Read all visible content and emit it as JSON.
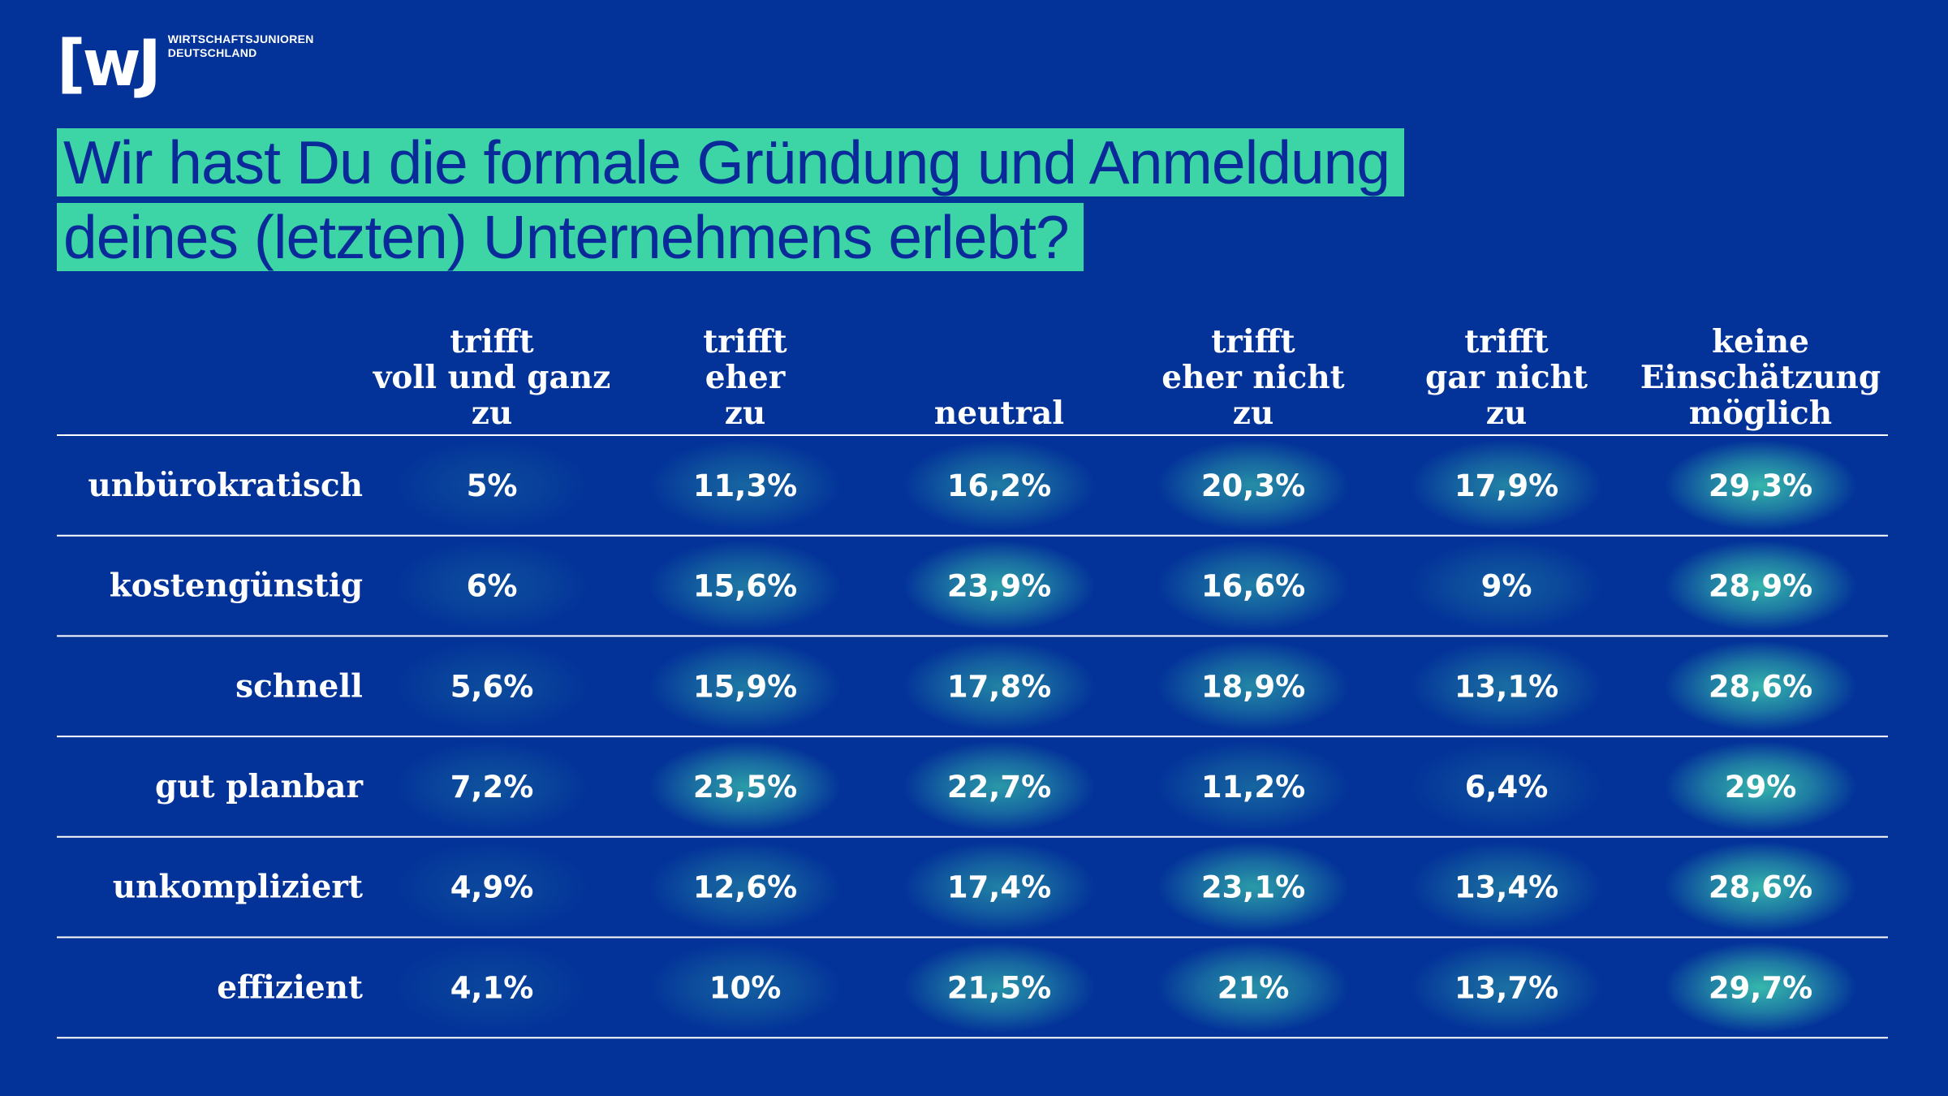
{
  "brand": {
    "mark": "[wJ",
    "name_line1": "WIRTSCHAFTSJUNIOREN",
    "name_line2": "DEUTSCHLAND"
  },
  "title": {
    "line1": "Wir hast Du die formale Gründung und Anmeldung",
    "line2": "deines (letzten) Unternehmens erlebt?"
  },
  "colors": {
    "background": "#033399",
    "accent": "#3dd5a6",
    "glow": "#3fd0b0"
  },
  "chart_data": {
    "type": "table",
    "columns": [
      [
        "trifft",
        "voll und ganz",
        "zu"
      ],
      [
        "trifft",
        "eher",
        "zu"
      ],
      [
        "neutral"
      ],
      [
        "trifft",
        "eher nicht",
        "zu"
      ],
      [
        "trifft",
        "gar nicht",
        "zu"
      ],
      [
        "keine",
        "Einschätzung",
        "möglich"
      ]
    ],
    "rows": [
      {
        "label": "unbürokratisch",
        "values": [
          5,
          11.3,
          16.2,
          20.3,
          17.9,
          29.3
        ],
        "display": [
          "5%",
          "11,3%",
          "16,2%",
          "20,3%",
          "17,9%",
          "29,3%"
        ]
      },
      {
        "label": "kostengünstig",
        "values": [
          6,
          15.6,
          23.9,
          16.6,
          9,
          28.9
        ],
        "display": [
          "6%",
          "15,6%",
          "23,9%",
          "16,6%",
          "9%",
          "28,9%"
        ]
      },
      {
        "label": "schnell",
        "values": [
          5.6,
          15.9,
          17.8,
          18.9,
          13.1,
          28.6
        ],
        "display": [
          "5,6%",
          "15,9%",
          "17,8%",
          "18,9%",
          "13,1%",
          "28,6%"
        ]
      },
      {
        "label": "gut planbar",
        "values": [
          7.2,
          23.5,
          22.7,
          11.2,
          6.4,
          29
        ],
        "display": [
          "7,2%",
          "23,5%",
          "22,7%",
          "11,2%",
          "6,4%",
          "29%"
        ]
      },
      {
        "label": "unkompliziert",
        "values": [
          4.9,
          12.6,
          17.4,
          23.1,
          13.4,
          28.6
        ],
        "display": [
          "4,9%",
          "12,6%",
          "17,4%",
          "23,1%",
          "13,4%",
          "28,6%"
        ]
      },
      {
        "label": "effizient",
        "values": [
          4.1,
          10,
          21.5,
          21,
          13.7,
          29.7
        ],
        "display": [
          "4,1%",
          "10%",
          "21,5%",
          "21%",
          "13,7%",
          "29,7%"
        ]
      }
    ],
    "value_range": [
      0,
      30
    ]
  }
}
